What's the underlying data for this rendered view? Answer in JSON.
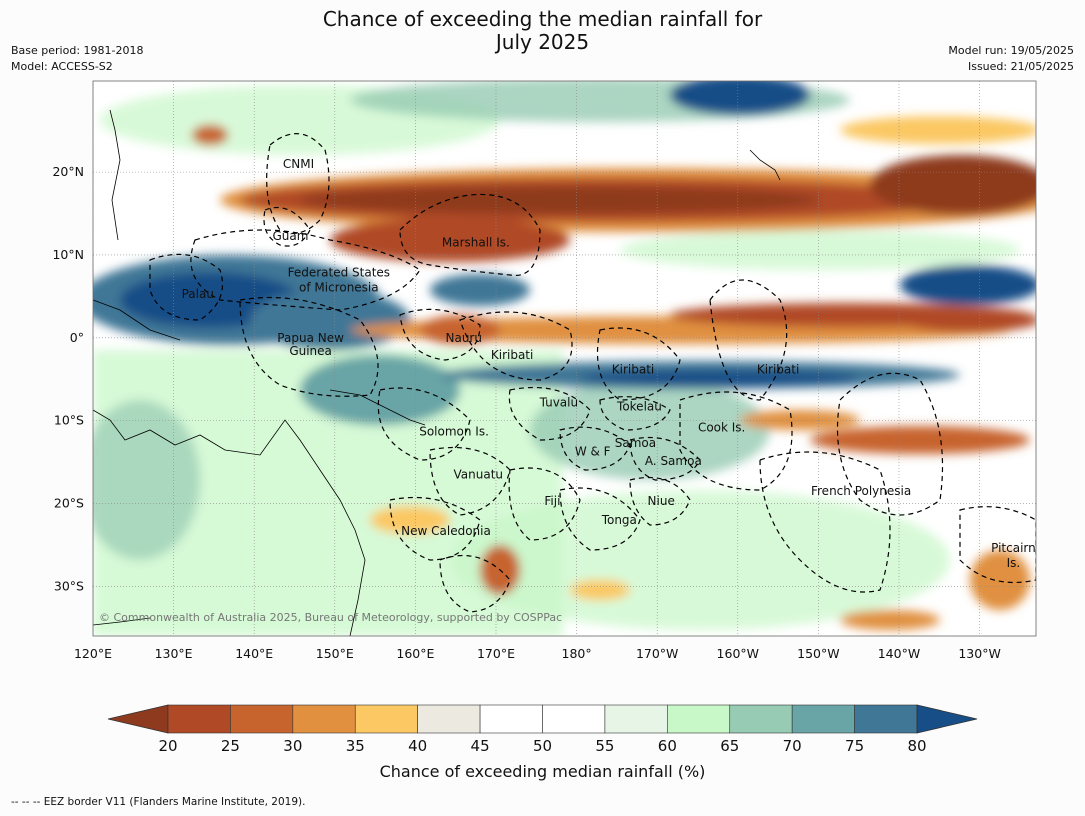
{
  "title_line1": "Chance of exceeding the median rainfall for",
  "title_line2": "July 2025",
  "base_period": "Base period: 1981-2018",
  "model": "Model: ACCESS-S2",
  "model_run": "Model run: 19/05/2025",
  "issued": "Issued: 21/05/2025",
  "copyright": "© Commonwealth of Australia 2025, Bureau of Meteorology, supported by COSPPac",
  "lon_ticks": [
    "120°E",
    "130°E",
    "140°E",
    "150°E",
    "160°E",
    "170°E",
    "180°",
    "170°W",
    "160°W",
    "150°W",
    "140°W",
    "130°W"
  ],
  "lon_values": [
    120,
    130,
    140,
    150,
    160,
    170,
    180,
    190,
    200,
    210,
    220,
    230
  ],
  "lat_ticks": [
    "20°N",
    "10°N",
    "0°",
    "10°S",
    "20°S",
    "30°S"
  ],
  "lat_values": [
    20,
    10,
    0,
    -10,
    -20,
    -30
  ],
  "lon_range": [
    120,
    237
  ],
  "lat_range": [
    -36,
    31
  ],
  "places": [
    {
      "name": "CNMI",
      "lon": 145.5,
      "lat": 21.0
    },
    {
      "name": "Guam",
      "lon": 144.5,
      "lat": 12.3
    },
    {
      "name": "Marshall Is.",
      "lon": 167.5,
      "lat": 11.5
    },
    {
      "name": "Federated States",
      "lon": 150.5,
      "lat": 7.9
    },
    {
      "name": "of Micronesia",
      "lon": 150.5,
      "lat": 6.1
    },
    {
      "name": "Palau",
      "lon": 133.0,
      "lat": 5.3
    },
    {
      "name": "Papua New",
      "lon": 147.0,
      "lat": 0.0
    },
    {
      "name": "Guinea",
      "lon": 147.0,
      "lat": -1.6
    },
    {
      "name": "Nauru",
      "lon": 166.0,
      "lat": 0.0
    },
    {
      "name": "Kiribati",
      "lon": 172.0,
      "lat": -2.1
    },
    {
      "name": "Kiribati",
      "lon": 187.0,
      "lat": -3.8
    },
    {
      "name": "Kiribati",
      "lon": 205.0,
      "lat": -3.8
    },
    {
      "name": "Tuvalu",
      "lon": 177.8,
      "lat": -7.8
    },
    {
      "name": "Tokelau",
      "lon": 187.8,
      "lat": -8.3
    },
    {
      "name": "Cook Is.",
      "lon": 198.0,
      "lat": -10.8
    },
    {
      "name": "Solomon Is.",
      "lon": 164.8,
      "lat": -11.3
    },
    {
      "name": "Samoa",
      "lon": 187.3,
      "lat": -12.7
    },
    {
      "name": "W & F",
      "lon": 182.0,
      "lat": -13.7
    },
    {
      "name": "A. Samoa",
      "lon": 192.0,
      "lat": -14.9
    },
    {
      "name": "Vanuatu",
      "lon": 167.8,
      "lat": -16.5
    },
    {
      "name": "French Polynesia",
      "lon": 215.3,
      "lat": -18.5
    },
    {
      "name": "Fiji",
      "lon": 177.0,
      "lat": -19.7
    },
    {
      "name": "Niue",
      "lon": 190.5,
      "lat": -19.7
    },
    {
      "name": "Tonga",
      "lon": 185.3,
      "lat": -22.0
    },
    {
      "name": "New Caledonia",
      "lon": 163.8,
      "lat": -23.3
    },
    {
      "name": "Pitcairn",
      "lon": 234.2,
      "lat": -25.4
    },
    {
      "name": "Is.",
      "lon": 234.2,
      "lat": -27.2
    }
  ],
  "colorbar": {
    "label": "Chance of exceeding median rainfall (%)",
    "ticks": [
      "20",
      "25",
      "30",
      "35",
      "40",
      "45",
      "50",
      "55",
      "60",
      "65",
      "70",
      "75",
      "80"
    ],
    "colors": [
      "#8e3a1f",
      "#b04a26",
      "#c7642e",
      "#e0903f",
      "#fbc864",
      "#ece9e1",
      "#ffffff",
      "#ffffff",
      "#e6f5e6",
      "#c8f7c8",
      "#97cbb3",
      "#69a4a6",
      "#417796",
      "#174e87"
    ]
  },
  "footer": "-- -- -- EEZ border V11 (Flanders Marine Institute, 2019)."
}
